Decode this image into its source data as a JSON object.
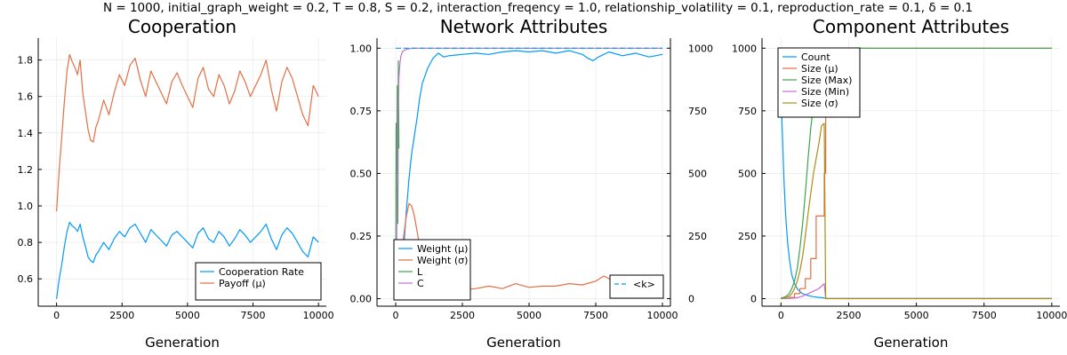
{
  "suptitle": "N = 1000, initial_graph_weight = 0.2, T = 0.8, S = 0.2, interaction_freqency = 1.0, relationship_volatility = 0.1, reproduction_rate = 0.1, δ = 0.1",
  "colors": {
    "blue": "#009AFA",
    "orange": "#E26F46",
    "green": "#3DA44D",
    "purple": "#C271D2",
    "olive": "#AC8D18"
  },
  "chart_data": [
    {
      "type": "line",
      "title": "Cooperation",
      "xlabel": "Generation",
      "xlim": [
        -700,
        10300
      ],
      "ylim": [
        0.45,
        1.92
      ],
      "xticks": [
        0,
        2500,
        5000,
        7500,
        10000
      ],
      "xtick_labels": [
        "0",
        "2500",
        "5000",
        "7500",
        "10000"
      ],
      "yticks": [
        0.6,
        0.8,
        1.0,
        1.2,
        1.4,
        1.6,
        1.8
      ],
      "ytick_labels": [
        "0.6",
        "0.8",
        "1.0",
        "1.2",
        "1.4",
        "1.6",
        "1.8"
      ],
      "legend_position": "bottom-right",
      "series": [
        {
          "name": "Cooperation Rate",
          "color": "#009AFA",
          "x": [
            0,
            100,
            200,
            300,
            400,
            500,
            600,
            700,
            800,
            900,
            1000,
            1100,
            1200,
            1300,
            1400,
            1500,
            1600,
            1800,
            2000,
            2200,
            2400,
            2600,
            2800,
            3000,
            3200,
            3400,
            3600,
            3800,
            4000,
            4200,
            4400,
            4600,
            4800,
            5000,
            5200,
            5400,
            5600,
            5800,
            6000,
            6200,
            6400,
            6600,
            6800,
            7000,
            7200,
            7400,
            7600,
            7800,
            8000,
            8200,
            8400,
            8600,
            8800,
            9000,
            9200,
            9400,
            9600,
            9800,
            10000
          ],
          "y": [
            0.49,
            0.6,
            0.68,
            0.78,
            0.86,
            0.91,
            0.89,
            0.88,
            0.86,
            0.9,
            0.83,
            0.78,
            0.72,
            0.7,
            0.69,
            0.73,
            0.75,
            0.8,
            0.76,
            0.82,
            0.86,
            0.83,
            0.88,
            0.9,
            0.85,
            0.8,
            0.87,
            0.84,
            0.81,
            0.78,
            0.84,
            0.86,
            0.83,
            0.8,
            0.77,
            0.85,
            0.88,
            0.82,
            0.8,
            0.86,
            0.83,
            0.78,
            0.82,
            0.87,
            0.84,
            0.8,
            0.83,
            0.86,
            0.9,
            0.82,
            0.76,
            0.84,
            0.88,
            0.85,
            0.8,
            0.75,
            0.72,
            0.83,
            0.8
          ]
        },
        {
          "name": "Payoff (μ)",
          "color": "#E26F46",
          "x": [
            0,
            100,
            200,
            300,
            400,
            500,
            600,
            700,
            800,
            900,
            1000,
            1100,
            1200,
            1300,
            1400,
            1500,
            1600,
            1800,
            2000,
            2200,
            2400,
            2600,
            2800,
            3000,
            3200,
            3400,
            3600,
            3800,
            4000,
            4200,
            4400,
            4600,
            4800,
            5000,
            5200,
            5400,
            5600,
            5800,
            6000,
            6200,
            6400,
            6600,
            6800,
            7000,
            7200,
            7400,
            7600,
            7800,
            8000,
            8200,
            8400,
            8600,
            8800,
            9000,
            9200,
            9400,
            9600,
            9800,
            10000
          ],
          "y": [
            0.97,
            1.2,
            1.38,
            1.58,
            1.74,
            1.83,
            1.79,
            1.76,
            1.72,
            1.8,
            1.62,
            1.52,
            1.42,
            1.36,
            1.35,
            1.43,
            1.47,
            1.58,
            1.5,
            1.62,
            1.72,
            1.66,
            1.77,
            1.81,
            1.69,
            1.6,
            1.74,
            1.68,
            1.62,
            1.56,
            1.68,
            1.73,
            1.66,
            1.6,
            1.54,
            1.7,
            1.76,
            1.64,
            1.6,
            1.72,
            1.66,
            1.56,
            1.63,
            1.74,
            1.68,
            1.6,
            1.66,
            1.72,
            1.8,
            1.64,
            1.52,
            1.68,
            1.76,
            1.7,
            1.6,
            1.5,
            1.44,
            1.66,
            1.6
          ]
        }
      ]
    },
    {
      "type": "line",
      "title": "Network Attributes",
      "xlabel": "Generation",
      "xlim": [
        -700,
        10300
      ],
      "ylim": [
        -0.03,
        1.04
      ],
      "y2lim": [
        -30,
        1040
      ],
      "xticks": [
        0,
        2500,
        5000,
        7500,
        10000
      ],
      "xtick_labels": [
        "0",
        "2500",
        "5000",
        "7500",
        "10000"
      ],
      "yticks": [
        0.0,
        0.25,
        0.5,
        0.75,
        1.0
      ],
      "ytick_labels": [
        "0.00",
        "0.25",
        "0.50",
        "0.75",
        "1.00"
      ],
      "y2ticks": [
        0,
        250,
        500,
        750,
        1000
      ],
      "y2tick_labels": [
        "0",
        "250",
        "500",
        "750",
        "1000"
      ],
      "legend_position": "bottom-left",
      "legend2_position": "bottom-right",
      "series": [
        {
          "name": "Weight (μ)",
          "color": "#009AFA",
          "axis": "left",
          "x": [
            0,
            100,
            200,
            300,
            400,
            500,
            600,
            700,
            800,
            900,
            1000,
            1200,
            1400,
            1600,
            1800,
            2000,
            2500,
            3000,
            3500,
            4000,
            4500,
            5000,
            5500,
            6000,
            6500,
            7000,
            7200,
            7400,
            7600,
            8000,
            8500,
            9000,
            9500,
            10000
          ],
          "y": [
            0.02,
            0.05,
            0.1,
            0.2,
            0.35,
            0.48,
            0.58,
            0.65,
            0.72,
            0.8,
            0.86,
            0.92,
            0.96,
            0.98,
            0.965,
            0.97,
            0.975,
            0.98,
            0.975,
            0.985,
            0.99,
            0.985,
            0.99,
            0.98,
            0.99,
            0.975,
            0.96,
            0.95,
            0.965,
            0.985,
            0.97,
            0.98,
            0.965,
            0.975
          ]
        },
        {
          "name": "Weight (σ)",
          "color": "#E26F46",
          "axis": "left",
          "x": [
            0,
            100,
            200,
            300,
            400,
            500,
            600,
            700,
            800,
            900,
            1000,
            1200,
            1400,
            1600,
            1800,
            2000,
            2500,
            3000,
            3500,
            4000,
            4500,
            5000,
            5500,
            6000,
            6500,
            7000,
            7500,
            7800,
            8000,
            8200,
            8500,
            9000,
            9500,
            10000
          ],
          "y": [
            0.02,
            0.06,
            0.14,
            0.25,
            0.33,
            0.38,
            0.37,
            0.33,
            0.27,
            0.21,
            0.16,
            0.11,
            0.08,
            0.06,
            0.05,
            0.04,
            0.035,
            0.04,
            0.05,
            0.04,
            0.06,
            0.045,
            0.05,
            0.05,
            0.06,
            0.055,
            0.07,
            0.09,
            0.08,
            0.06,
            0.065,
            0.08,
            0.07,
            0.075
          ]
        },
        {
          "name": "L",
          "color": "#3DA44D",
          "axis": "left",
          "x": [
            0,
            20,
            40,
            60,
            80,
            100,
            120
          ],
          "y": [
            0.0,
            0.7,
            0.5,
            0.85,
            0.3,
            0.95,
            0.6
          ]
        },
        {
          "name": "C",
          "color": "#C271D2",
          "axis": "left",
          "x": [
            0,
            30,
            60,
            90,
            120,
            160,
            200,
            250,
            300,
            400,
            600,
            800,
            1000,
            10000
          ],
          "y": [
            0.0,
            0.2,
            0.5,
            0.75,
            0.88,
            0.94,
            0.97,
            0.985,
            0.99,
            0.995,
            1.0,
            1.0,
            1.0,
            1.0
          ]
        },
        {
          "name": "<k>",
          "color": "#009AFA",
          "axis": "right",
          "dash": true,
          "x": [
            0,
            100,
            200,
            300,
            400,
            600,
            800,
            1000,
            10000
          ],
          "y": [
            1000,
            1000,
            1000,
            1000,
            1000,
            1000,
            1000,
            1000,
            1000
          ]
        }
      ]
    },
    {
      "type": "line",
      "title": "Component Attributes",
      "xlabel": "Generation",
      "xlim": [
        -700,
        10300
      ],
      "ylim": [
        -30,
        1040
      ],
      "xticks": [
        0,
        2500,
        5000,
        7500,
        10000
      ],
      "xtick_labels": [
        "0",
        "2500",
        "5000",
        "7500",
        "10000"
      ],
      "yticks": [
        0,
        250,
        500,
        750,
        1000
      ],
      "ytick_labels": [
        "0",
        "250",
        "500",
        "750",
        "1000"
      ],
      "legend_position": "top-left",
      "series": [
        {
          "name": "Count",
          "color": "#009AFA",
          "x": [
            0,
            10,
            40,
            80,
            120,
            160,
            200,
            260,
            320,
            400,
            500,
            600,
            700,
            800,
            1000,
            1200,
            1400,
            1600,
            1700,
            10000
          ],
          "y": [
            900,
            850,
            700,
            560,
            450,
            360,
            290,
            210,
            150,
            95,
            60,
            40,
            28,
            20,
            12,
            8,
            5,
            3,
            1,
            1
          ]
        },
        {
          "name": "Size (μ)",
          "color": "#E26F46",
          "x": [
            0,
            300,
            300,
            500,
            500,
            700,
            700,
            900,
            900,
            1100,
            1100,
            1300,
            1300,
            1600,
            1600,
            1650,
            1650,
            10000
          ],
          "y": [
            1,
            1,
            5,
            5,
            20,
            20,
            40,
            40,
            80,
            80,
            160,
            160,
            330,
            330,
            500,
            500,
            1000,
            1000
          ]
        },
        {
          "name": "Size (Max)",
          "color": "#3DA44D",
          "x": [
            0,
            100,
            200,
            300,
            400,
            500,
            600,
            700,
            800,
            900,
            1000,
            1100,
            1200,
            1300,
            1400,
            1500,
            1600,
            1650,
            1650,
            10000
          ],
          "y": [
            3,
            5,
            10,
            20,
            40,
            70,
            120,
            200,
            300,
            420,
            560,
            680,
            780,
            860,
            920,
            960,
            990,
            1000,
            1000,
            1000
          ]
        },
        {
          "name": "Size (Min)",
          "color": "#C271D2",
          "x": [
            0,
            200,
            400,
            600,
            800,
            1000,
            1200,
            1400,
            1600,
            1650,
            1700,
            10000
          ],
          "y": [
            1,
            1,
            2,
            4,
            10,
            20,
            30,
            40,
            60,
            1,
            1,
            1
          ]
        },
        {
          "name": "Size (σ)",
          "color": "#AC8D18",
          "x": [
            0,
            100,
            200,
            300,
            400,
            500,
            600,
            700,
            800,
            900,
            1000,
            1100,
            1200,
            1300,
            1400,
            1500,
            1600,
            1650,
            1650,
            10000
          ],
          "y": [
            0,
            2,
            5,
            10,
            20,
            40,
            70,
            110,
            170,
            250,
            340,
            420,
            500,
            560,
            620,
            690,
            700,
            0,
            0,
            0
          ]
        }
      ]
    }
  ]
}
